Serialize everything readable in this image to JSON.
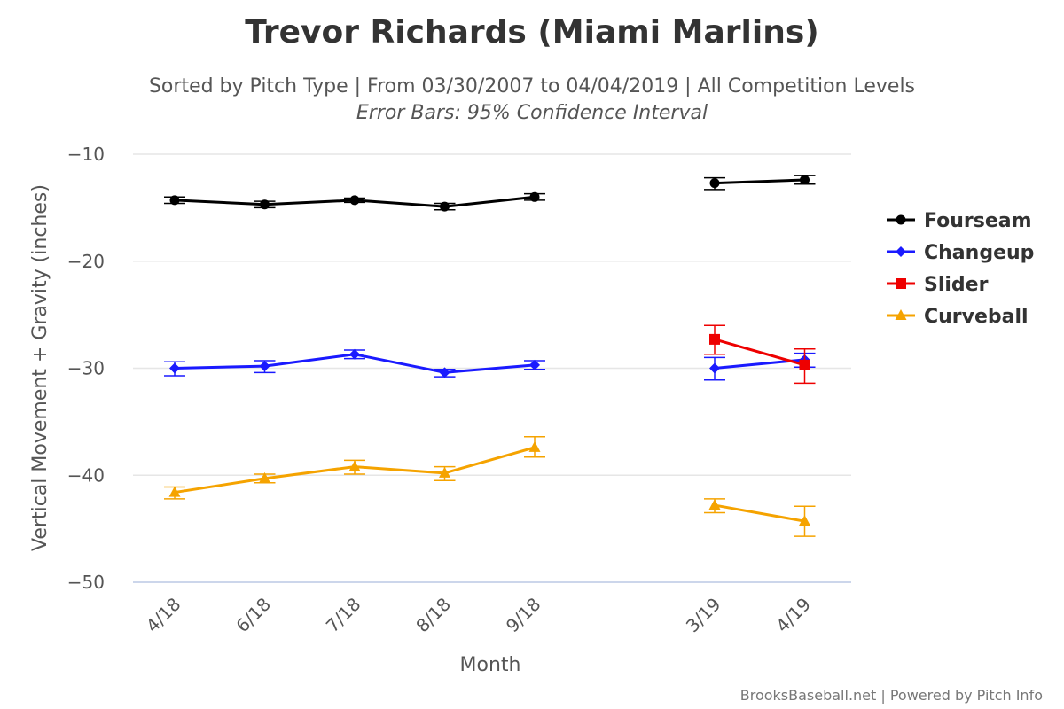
{
  "chart_data": {
    "type": "line",
    "title": "Trevor Richards (Miami Marlins)",
    "subtitle": "Sorted by Pitch Type | From 03/30/2007 to 04/04/2019 | All Competition Levels",
    "subtitle2": "Error Bars: 95% Confidence Interval",
    "xlabel": "Month",
    "ylabel": "Vertical Movement + Gravity (inches)",
    "credit": "BrooksBaseball.net | Powered by Pitch Info",
    "categories": [
      "4/18",
      "6/18",
      "7/18",
      "8/18",
      "9/18",
      "",
      "3/19",
      "4/19"
    ],
    "ylim": [
      -50,
      -10
    ],
    "yticks": [
      -10,
      -20,
      -30,
      -40,
      -50
    ],
    "grid": true,
    "legend_position": "right",
    "series": [
      {
        "name": "Fourseam",
        "color": "#000000",
        "marker": "circle",
        "values": [
          -14.3,
          -14.7,
          -14.3,
          -14.9,
          -14.0,
          null,
          -12.7,
          -12.4
        ],
        "err_low": [
          -14.6,
          -15.0,
          -14.5,
          -15.2,
          -14.3,
          null,
          -13.3,
          -12.8
        ],
        "err_high": [
          -14.0,
          -14.4,
          -14.1,
          -14.6,
          -13.7,
          null,
          -12.2,
          -12.0
        ]
      },
      {
        "name": "Changeup",
        "color": "#1a1aff",
        "marker": "diamond",
        "values": [
          -30.0,
          -29.8,
          -28.7,
          -30.4,
          -29.7,
          null,
          -30.0,
          -29.2
        ],
        "err_low": [
          -30.7,
          -30.4,
          -29.1,
          -30.8,
          -30.1,
          null,
          -31.1,
          -29.9
        ],
        "err_high": [
          -29.4,
          -29.3,
          -28.3,
          -30.1,
          -29.3,
          null,
          -29.0,
          -28.6
        ]
      },
      {
        "name": "Slider",
        "color": "#ee0000",
        "marker": "square",
        "values": [
          null,
          null,
          null,
          null,
          null,
          null,
          -27.3,
          -29.7
        ],
        "err_low": [
          null,
          null,
          null,
          null,
          null,
          null,
          -28.7,
          -31.4
        ],
        "err_high": [
          null,
          null,
          null,
          null,
          null,
          null,
          -26.0,
          -28.2
        ]
      },
      {
        "name": "Curveball",
        "color": "#f5a300",
        "marker": "triangle",
        "values": [
          -41.6,
          -40.3,
          -39.2,
          -39.8,
          -37.4,
          null,
          -42.8,
          -44.3
        ],
        "err_low": [
          -42.2,
          -40.7,
          -39.9,
          -40.5,
          -38.3,
          null,
          -43.5,
          -45.7
        ],
        "err_high": [
          -41.1,
          -39.9,
          -38.6,
          -39.2,
          -36.4,
          null,
          -42.2,
          -42.9
        ]
      }
    ]
  }
}
